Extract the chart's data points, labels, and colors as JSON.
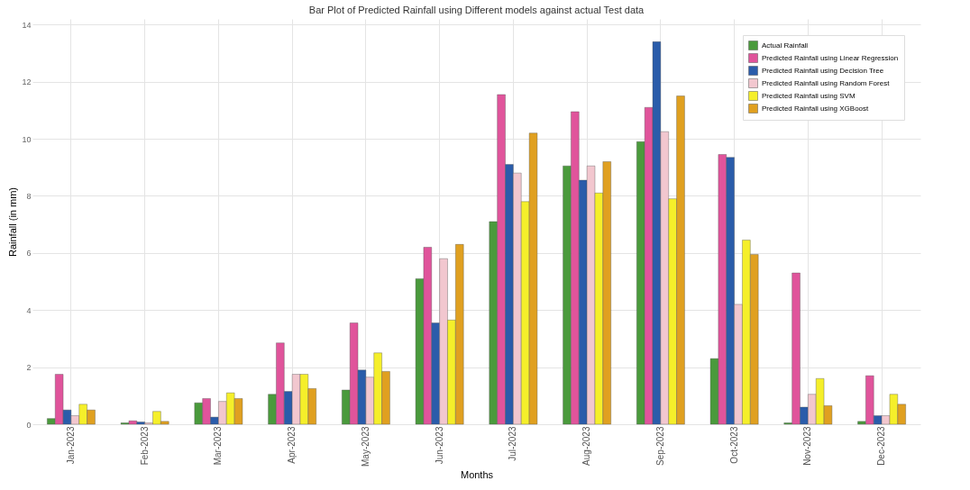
{
  "chart_data": {
    "type": "bar",
    "title": "Bar Plot of Predicted Rainfall using Different models against actual Test data",
    "xlabel": "Months",
    "ylabel": "Rainfall (in mm)",
    "categories": [
      "Jan-2023",
      "Feb-2023",
      "Mar-2023",
      "Apr-2023",
      "May-2023",
      "Jun-2023",
      "Jul-2023",
      "Aug-2023",
      "Sep-2023",
      "Oct-2023",
      "Nov-2023",
      "Dec-2023"
    ],
    "series": [
      {
        "name": "Actual Rainfall",
        "color": "#4a9a3c",
        "values": [
          0.2,
          0.05,
          0.75,
          1.05,
          1.2,
          5.1,
          7.1,
          9.05,
          9.9,
          2.3,
          0.05,
          0.1
        ]
      },
      {
        "name": "Predicted Rainfall using Linear Regression",
        "color": "#e0549b",
        "values": [
          1.75,
          0.12,
          0.9,
          2.85,
          3.55,
          6.2,
          11.55,
          10.95,
          11.1,
          9.45,
          5.3,
          1.7
        ]
      },
      {
        "name": "Predicted Rainfall using Decision Tree",
        "color": "#2a5caa",
        "values": [
          0.5,
          0.08,
          0.25,
          1.15,
          1.9,
          3.55,
          9.1,
          8.55,
          13.4,
          9.35,
          0.6,
          0.3
        ]
      },
      {
        "name": "Predicted Rainfall using Random Forest",
        "color": "#f2c7cf",
        "values": [
          0.3,
          0.05,
          0.8,
          1.75,
          1.65,
          5.8,
          8.8,
          9.05,
          10.25,
          4.2,
          1.05,
          0.3
        ]
      },
      {
        "name": "Predicted Rainfall using SVM",
        "color": "#f5ef2a",
        "values": [
          0.7,
          0.45,
          1.1,
          1.75,
          2.5,
          3.65,
          7.8,
          8.1,
          7.9,
          6.45,
          1.6,
          1.05
        ]
      },
      {
        "name": "Predicted Rainfall using XGBoost",
        "color": "#e0a020",
        "values": [
          0.5,
          0.1,
          0.9,
          1.25,
          1.85,
          6.3,
          10.2,
          9.2,
          11.5,
          5.95,
          0.65,
          0.7
        ]
      }
    ],
    "ylim": [
      0,
      14.2
    ],
    "yticks": [
      0,
      2,
      4,
      6,
      8,
      10,
      12,
      14
    ],
    "grid": true,
    "legend": "top right"
  }
}
